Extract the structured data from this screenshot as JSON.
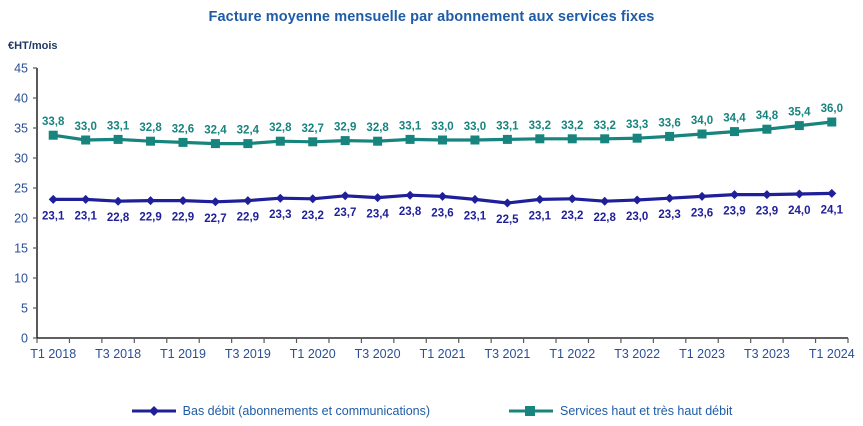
{
  "chart_data": {
    "type": "line",
    "title": "Facture moyenne mensuelle par abonnement aux services fixes",
    "ylabel": "€HT/mois",
    "xlabel": "",
    "ylim": [
      0,
      45
    ],
    "ytick_step": 5,
    "grid": false,
    "legend_position": "bottom",
    "decimal_separator": ",",
    "categories": [
      "T1 2018",
      "T2 2018",
      "T3 2018",
      "T4 2018",
      "T1 2019",
      "T2 2019",
      "T3 2019",
      "T4 2019",
      "T1 2020",
      "T2 2020",
      "T3 2020",
      "T4 2020",
      "T1 2021",
      "T2 2021",
      "T3 2021",
      "T4 2021",
      "T1 2022",
      "T2 2022",
      "T3 2022",
      "T4 2022",
      "T1 2023",
      "T2 2023",
      "T3 2023",
      "T4 2023",
      "T1 2024"
    ],
    "x_axis_labels_shown": [
      "T1 2018",
      "T3 2018",
      "T1 2019",
      "T3 2019",
      "T1 2020",
      "T3 2020",
      "T1 2021",
      "T3 2021",
      "T1 2022",
      "T3 2022",
      "T1 2023",
      "T3 2023",
      "T1 2024"
    ],
    "series": [
      {
        "name": "Bas débit (abonnements et communications)",
        "color": "#1F1F99",
        "marker": "diamond",
        "label_position": "below",
        "values": [
          23.1,
          23.1,
          22.8,
          22.9,
          22.9,
          22.7,
          22.9,
          23.3,
          23.2,
          23.7,
          23.4,
          23.8,
          23.6,
          23.1,
          22.5,
          23.1,
          23.2,
          22.8,
          23.0,
          23.3,
          23.6,
          23.9,
          23.9,
          24.0,
          24.1
        ]
      },
      {
        "name": "Services haut et très haut débit",
        "color": "#17847E",
        "marker": "square",
        "label_position": "above",
        "values": [
          33.8,
          33.0,
          33.1,
          32.8,
          32.6,
          32.4,
          32.4,
          32.8,
          32.7,
          32.9,
          32.8,
          33.1,
          33.0,
          33.0,
          33.1,
          33.2,
          33.2,
          33.2,
          33.3,
          33.6,
          34.0,
          34.4,
          34.8,
          35.4,
          36.0
        ]
      }
    ],
    "colors": {
      "title": "#1F5CA8",
      "axis_tick_labels": "#2A4F96",
      "ylabel": "#1F3864",
      "axis_line": "#000000",
      "tick_mark": "#595959",
      "background": "#FFFFFF"
    }
  }
}
